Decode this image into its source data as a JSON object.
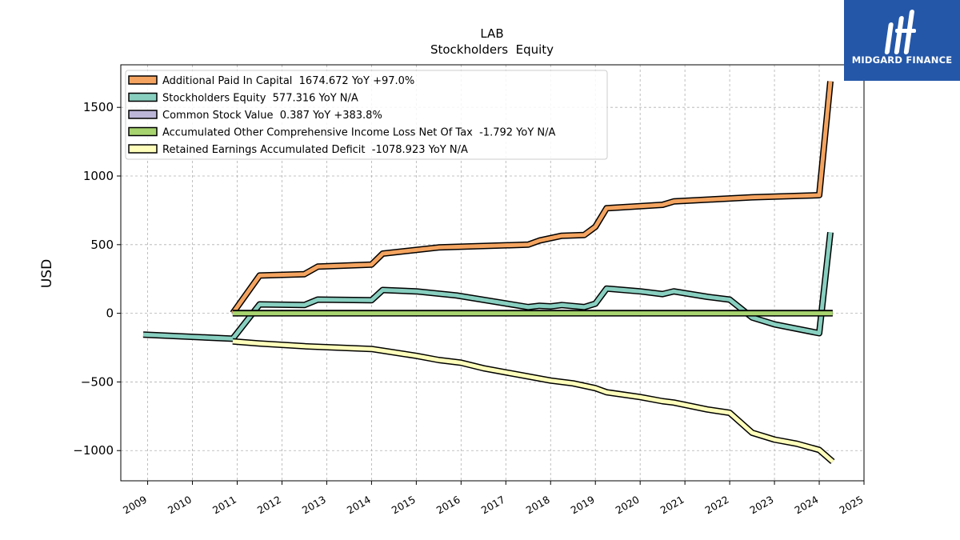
{
  "logo": {
    "text": "MIDGARD FINANCE",
    "background": "#2457a8",
    "icon": "midgard-logo-icon"
  },
  "chart_data": {
    "type": "line",
    "title": "LAB",
    "subtitle": "Stockholders  Equity",
    "ylabel": "USD",
    "xlabel": "",
    "xlim": [
      2008.4,
      2025.0
    ],
    "ylim": [
      -1220,
      1810
    ],
    "x_ticks": [
      2009,
      2010,
      2011,
      2012,
      2013,
      2014,
      2015,
      2016,
      2017,
      2018,
      2019,
      2020,
      2021,
      2022,
      2023,
      2024,
      2025
    ],
    "y_ticks": [
      -1000,
      -500,
      0,
      500,
      1000,
      1500
    ],
    "grid": true,
    "legend_position": "top-left",
    "series": [
      {
        "name": "Additional Paid In Capital  1674.672 YoY +97.0%",
        "color": "#f4a460",
        "points": [
          [
            2010.9,
            0
          ],
          [
            2011.5,
            275
          ],
          [
            2012.5,
            285
          ],
          [
            2012.8,
            340
          ],
          [
            2014.0,
            355
          ],
          [
            2014.25,
            435
          ],
          [
            2015.5,
            480
          ],
          [
            2017.5,
            500
          ],
          [
            2017.75,
            530
          ],
          [
            2018.25,
            565
          ],
          [
            2018.75,
            570
          ],
          [
            2019.0,
            630
          ],
          [
            2019.25,
            765
          ],
          [
            2020.5,
            790
          ],
          [
            2020.75,
            815
          ],
          [
            2022.5,
            845
          ],
          [
            2024.0,
            860
          ],
          [
            2024.25,
            1690
          ]
        ]
      },
      {
        "name": "Stockholders Equity  577.316 YoY N/A",
        "color": "#88cfc0",
        "points": [
          [
            2008.9,
            -155
          ],
          [
            2010.9,
            -185
          ],
          [
            2011.5,
            65
          ],
          [
            2012.5,
            60
          ],
          [
            2012.8,
            100
          ],
          [
            2014.0,
            95
          ],
          [
            2014.25,
            170
          ],
          [
            2015.0,
            160
          ],
          [
            2015.9,
            130
          ],
          [
            2017.5,
            45
          ],
          [
            2017.75,
            55
          ],
          [
            2018.0,
            50
          ],
          [
            2018.25,
            60
          ],
          [
            2018.75,
            45
          ],
          [
            2019.0,
            70
          ],
          [
            2019.25,
            180
          ],
          [
            2020.0,
            160
          ],
          [
            2020.5,
            140
          ],
          [
            2020.75,
            160
          ],
          [
            2021.5,
            120
          ],
          [
            2022.0,
            100
          ],
          [
            2022.5,
            -30
          ],
          [
            2023.0,
            -80
          ],
          [
            2024.0,
            -145
          ],
          [
            2024.25,
            590
          ]
        ]
      },
      {
        "name": "Common Stock Value  0.387 YoY +383.8%",
        "color": "#bcb7d9",
        "points": [
          [
            2010.9,
            2
          ],
          [
            2024.3,
            2
          ]
        ]
      },
      {
        "name": "Accumulated Other Comprehensive Income Loss Net Of Tax  -1.792 YoY N/A",
        "color": "#a8d46f",
        "points": [
          [
            2010.9,
            0
          ],
          [
            2024.3,
            0
          ]
        ]
      },
      {
        "name": "Retained Earnings Accumulated Deficit  -1078.923 YoY N/A",
        "color": "#ffffbb",
        "points": [
          [
            2010.9,
            -205
          ],
          [
            2011.5,
            -220
          ],
          [
            2012.5,
            -240
          ],
          [
            2014.0,
            -260
          ],
          [
            2015.0,
            -310
          ],
          [
            2015.5,
            -340
          ],
          [
            2016.0,
            -360
          ],
          [
            2016.5,
            -400
          ],
          [
            2017.5,
            -460
          ],
          [
            2018.0,
            -490
          ],
          [
            2018.5,
            -510
          ],
          [
            2019.0,
            -545
          ],
          [
            2019.25,
            -575
          ],
          [
            2020.0,
            -610
          ],
          [
            2020.5,
            -640
          ],
          [
            2020.75,
            -650
          ],
          [
            2021.5,
            -700
          ],
          [
            2022.0,
            -725
          ],
          [
            2022.5,
            -870
          ],
          [
            2023.0,
            -920
          ],
          [
            2023.5,
            -950
          ],
          [
            2024.0,
            -995
          ],
          [
            2024.3,
            -1080
          ]
        ]
      }
    ]
  }
}
